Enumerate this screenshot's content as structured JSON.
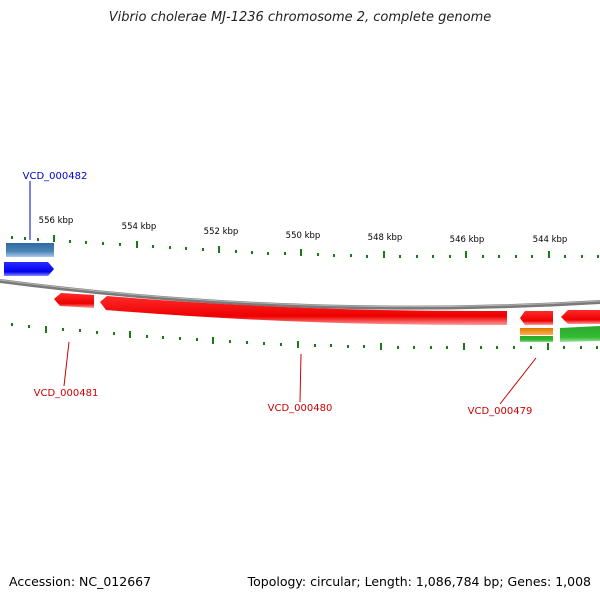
{
  "title": "Vibrio cholerae MJ-1236 chromosome 2, complete genome",
  "footer": {
    "accession": "Accession: NC_012667",
    "summary": "Topology: circular; Length: 1,086,784 bp; Genes: 1,008"
  },
  "scale": {
    "unit": "kbp",
    "tick_labels": [
      "556 kbp",
      "554 kbp",
      "552 kbp",
      "550 kbp",
      "548 kbp",
      "546 kbp",
      "544 kbp"
    ]
  },
  "gene_labels": [
    {
      "name": "VCD_000482",
      "color": "#0000cc"
    },
    {
      "name": "VCD_000481",
      "color": "#cc0000"
    },
    {
      "name": "VCD_000480",
      "color": "#cc0000"
    },
    {
      "name": "VCD_000479",
      "color": "#cc0000"
    }
  ],
  "colors": {
    "backbone": "#888888",
    "forward_strand": "#0000ee",
    "reverse_strand": "#ee0000",
    "rna": "#4a86b8",
    "tick": "#1a7a1a",
    "orange_feature": "#f08a00",
    "green_feature": "#33bb33"
  }
}
